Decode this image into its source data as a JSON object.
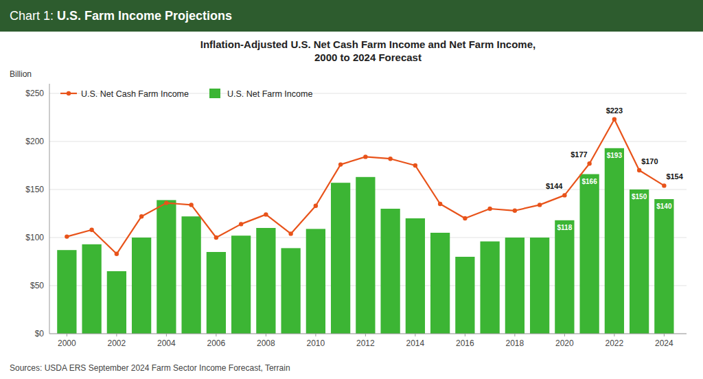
{
  "chart_data": {
    "type": "bar",
    "header": [
      "Chart 1: ",
      "U.S. Farm Income Projections"
    ],
    "title": "Inflation-Adjusted U.S. Net Cash Farm Income and Net Farm Income,\n2000 to 2024 Forecast",
    "ylabel": "Billion",
    "source": "Sources: USDA ERS September 2024 Farm Sector Income Forecast, Terrain",
    "x": [
      2000,
      2001,
      2002,
      2003,
      2004,
      2005,
      2006,
      2007,
      2008,
      2009,
      2010,
      2011,
      2012,
      2013,
      2014,
      2015,
      2016,
      2017,
      2018,
      2019,
      2020,
      2021,
      2022,
      2023,
      2024
    ],
    "xlim": [
      1999.3,
      2024.9
    ],
    "xticks": [
      2000,
      2002,
      2004,
      2006,
      2008,
      2010,
      2012,
      2014,
      2016,
      2018,
      2020,
      2022,
      2024
    ],
    "ylim": [
      0,
      260
    ],
    "yticks": [
      {
        "value": 0,
        "label": "$0"
      },
      {
        "value": 50,
        "label": "$50"
      },
      {
        "value": 100,
        "label": "$100"
      },
      {
        "value": 150,
        "label": "$150"
      },
      {
        "value": 200,
        "label": "$200"
      },
      {
        "value": 250,
        "label": "$250"
      }
    ],
    "grid": true,
    "legend": "upper left",
    "series": [
      {
        "name": "U.S. Net Cash Farm Income",
        "type": "line",
        "color": "#E8531A",
        "marker": "circle",
        "values": [
          101,
          108,
          83,
          122,
          136,
          134,
          100,
          114,
          124,
          104,
          133,
          176,
          184,
          182,
          175,
          135,
          120,
          130,
          128,
          134,
          144,
          177,
          223,
          170,
          154
        ],
        "data_labels": true,
        "value_labels": [
          null,
          null,
          null,
          null,
          null,
          null,
          null,
          null,
          null,
          null,
          null,
          null,
          null,
          null,
          null,
          null,
          null,
          null,
          null,
          null,
          "$144",
          "$177",
          "$223",
          "$170",
          "$154"
        ]
      },
      {
        "name": "U.S. Net Farm Income",
        "type": "bar",
        "color": "#3CB534",
        "values": [
          87,
          93,
          65,
          100,
          139,
          122,
          85,
          102,
          110,
          89,
          109,
          157,
          163,
          130,
          120,
          105,
          80,
          96,
          100,
          100,
          118,
          166,
          193,
          150,
          140
        ],
        "data_labels": true,
        "value_labels": [
          null,
          null,
          null,
          null,
          null,
          null,
          null,
          null,
          null,
          null,
          null,
          null,
          null,
          null,
          null,
          null,
          null,
          null,
          null,
          null,
          "$118",
          "$166",
          "$193",
          "$150",
          "$140"
        ]
      }
    ]
  }
}
